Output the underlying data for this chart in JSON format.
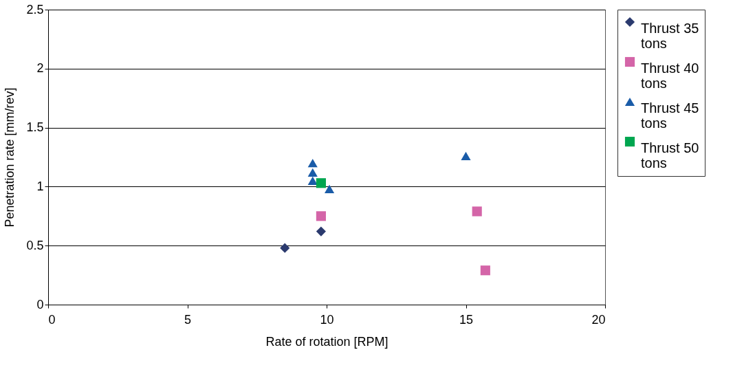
{
  "chart_data": {
    "type": "scatter",
    "xlabel": "Rate of rotation [RPM]",
    "ylabel": "Penetration rate [mm/rev]",
    "xlim": [
      0,
      20
    ],
    "xticks": [
      0,
      5,
      10,
      15,
      20
    ],
    "ylim": [
      0,
      2.5
    ],
    "yticks": [
      0,
      0.5,
      1,
      1.5,
      2,
      2.5
    ],
    "grid": "y",
    "legend": "right",
    "series": [
      {
        "name": "Thrust 35 tons",
        "color": "#2b3a6e",
        "marker": "diamond",
        "x": [
          8.5,
          9.8
        ],
        "values": [
          0.48,
          0.62
        ]
      },
      {
        "name": "Thrust 40 tons",
        "color": "#d465a8",
        "marker": "square",
        "x": [
          9.8,
          15.4,
          15.7
        ],
        "values": [
          0.75,
          0.79,
          0.29
        ]
      },
      {
        "name": "Thrust 45 tons",
        "color": "#1a5ca8",
        "marker": "triangle",
        "x": [
          9.5,
          9.5,
          9.5,
          10.1,
          15.0
        ],
        "values": [
          1.2,
          1.12,
          1.05,
          0.98,
          1.26
        ]
      },
      {
        "name": "Thrust 50 tons",
        "color": "#00a650",
        "marker": "square",
        "x": [
          9.8
        ],
        "values": [
          1.03
        ]
      }
    ]
  }
}
